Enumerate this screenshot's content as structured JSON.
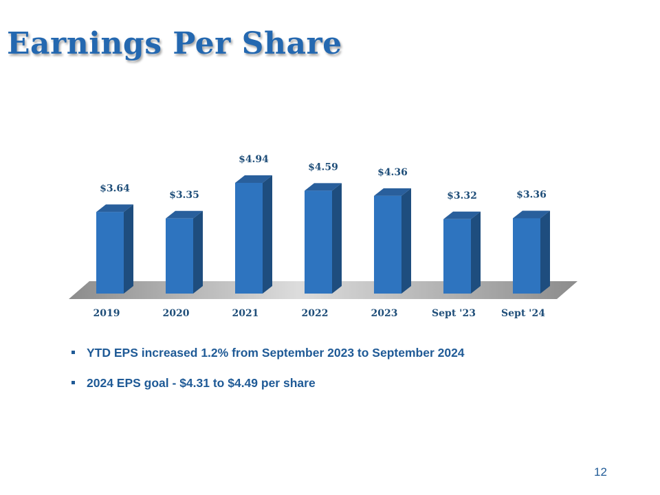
{
  "slide": {
    "title": "Earnings Per Share",
    "page_number": "12"
  },
  "bullets": [
    "YTD EPS increased 1.2% from September 2023 to September 2024",
    "2024 EPS goal - $4.31 to $4.49 per share"
  ],
  "colors": {
    "title": "#2468b0",
    "bar_front": "#2e74bf",
    "bar_side": "#1e4d7e",
    "bar_top": "#295f9c",
    "floor": "#a6a6a6",
    "text": "#1f4e79"
  },
  "chart_data": {
    "type": "bar",
    "categories": [
      "2019",
      "2020",
      "2021",
      "2022",
      "2023",
      "Sept '23",
      "Sept '24"
    ],
    "values": [
      3.64,
      3.35,
      4.94,
      4.59,
      4.36,
      3.32,
      3.36
    ],
    "value_labels": [
      "$3.64",
      "$3.35",
      "$4.94",
      "$4.59",
      "$4.36",
      "$3.32",
      "$3.36"
    ],
    "ylim": [
      0,
      5
    ],
    "grid": false,
    "legend": "none",
    "style": "3d-column"
  }
}
